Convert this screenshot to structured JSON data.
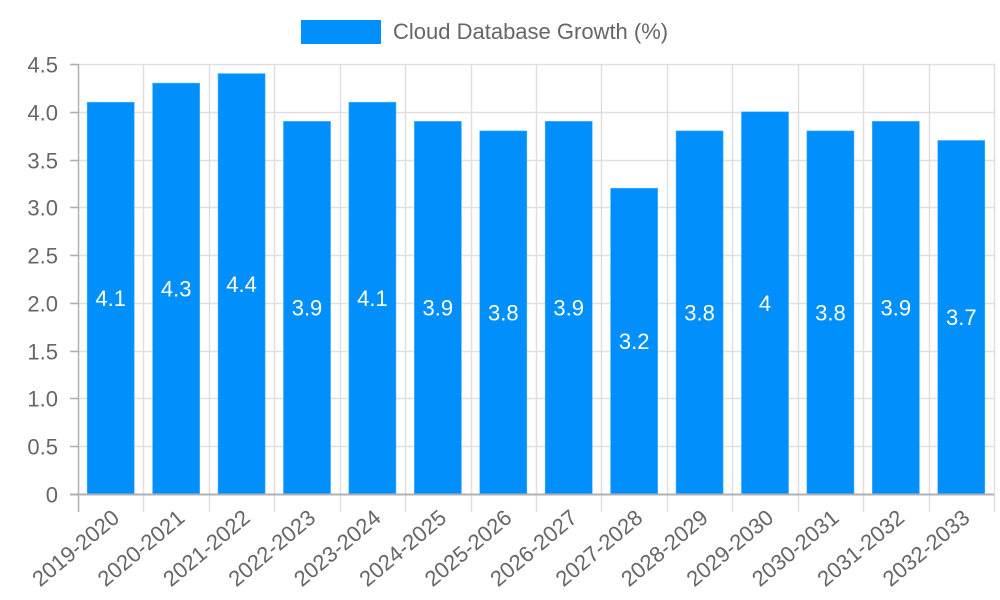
{
  "chart_data": {
    "type": "bar",
    "title": "",
    "xlabel": "",
    "ylabel": "",
    "categories": [
      "2019-2020",
      "2020-2021",
      "2021-2022",
      "2022-2023",
      "2023-2024",
      "2024-2025",
      "2025-2026",
      "2026-2027",
      "2027-2028",
      "2028-2029",
      "2029-2030",
      "2030-2031",
      "2031-2032",
      "2032-2033"
    ],
    "series": [
      {
        "name": "Cloud Database Growth (%)",
        "color": "#008ffb",
        "values": [
          4.1,
          4.3,
          4.4,
          3.9,
          4.1,
          3.9,
          3.8,
          3.9,
          3.2,
          3.8,
          4,
          3.8,
          3.9,
          3.7
        ],
        "data_labels": [
          "4.1",
          "4.3",
          "4.4",
          "3.9",
          "4.1",
          "3.9",
          "3.8",
          "3.9",
          "3.2",
          "3.8",
          "4",
          "3.8",
          "3.9",
          "3.7"
        ]
      }
    ],
    "ylim": [
      0,
      4.5
    ],
    "yticks": [
      "0",
      "0.5",
      "1.0",
      "1.5",
      "2.0",
      "2.5",
      "3.0",
      "3.5",
      "4.0",
      "4.5"
    ],
    "ytick_values": [
      0,
      0.5,
      1.0,
      1.5,
      2.0,
      2.5,
      3.0,
      3.5,
      4.0,
      4.5
    ],
    "grid": true,
    "legend_position": "top",
    "xtick_rotation": -40
  },
  "legend": {
    "label": "Cloud Database Growth (%)",
    "color": "#008ffb"
  },
  "colors": {
    "bar": "#008ffb",
    "grid": "#e0e0e0",
    "axis": "#b0b0b0",
    "tick_text": "#666666",
    "data_label": "#ffffff"
  }
}
